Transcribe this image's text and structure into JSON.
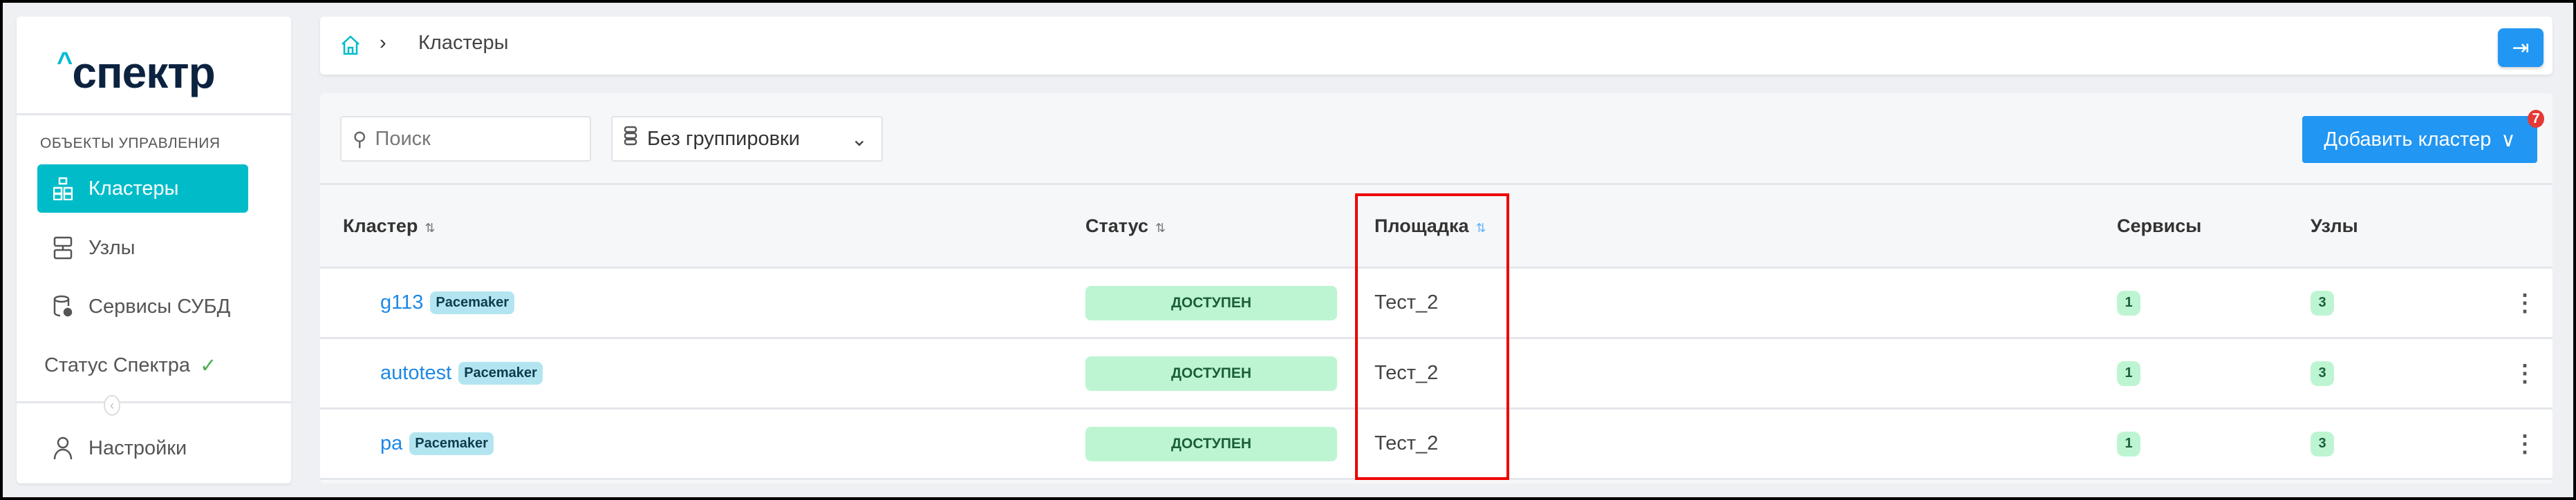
{
  "sidebar": {
    "logo": "спектр",
    "section_title": "ОБЪЕКТЫ УПРАВЛЕНИЯ",
    "items": [
      {
        "label": "Кластеры",
        "icon": "cluster-icon",
        "active": true
      },
      {
        "label": "Узлы",
        "icon": "server-icon"
      },
      {
        "label": "Сервисы СУБД",
        "icon": "database-gear-icon"
      },
      {
        "label": "Статус Спектра",
        "icon": "check-icon"
      }
    ],
    "settings": "Настройки"
  },
  "header": {
    "breadcrumb": [
      "Кластеры"
    ]
  },
  "toolbar": {
    "search_placeholder": "Поиск",
    "grouping": "Без группировки",
    "add_button": "Добавить кластер",
    "notification_count": "7"
  },
  "table": {
    "columns": [
      "Кластер",
      "Статус",
      "Площадка",
      "Сервисы",
      "Узлы"
    ],
    "rows": [
      {
        "name": "g113",
        "type": "Pacemaker",
        "status": "ДОСТУПЕН",
        "site": "Тест_2",
        "services": "1",
        "nodes": "3"
      },
      {
        "name": "autotest",
        "type": "Pacemaker",
        "status": "ДОСТУПЕН",
        "site": "Тест_2",
        "services": "1",
        "nodes": "3"
      },
      {
        "name": "pa",
        "type": "Pacemaker",
        "status": "ДОСТУПЕН",
        "site": "Тест_2",
        "services": "1",
        "nodes": "3"
      }
    ]
  },
  "colors": {
    "accent": "#00bcc9",
    "primary": "#2196f3",
    "status_ok_bg": "#bdf5d2",
    "highlight": "#e00000"
  }
}
